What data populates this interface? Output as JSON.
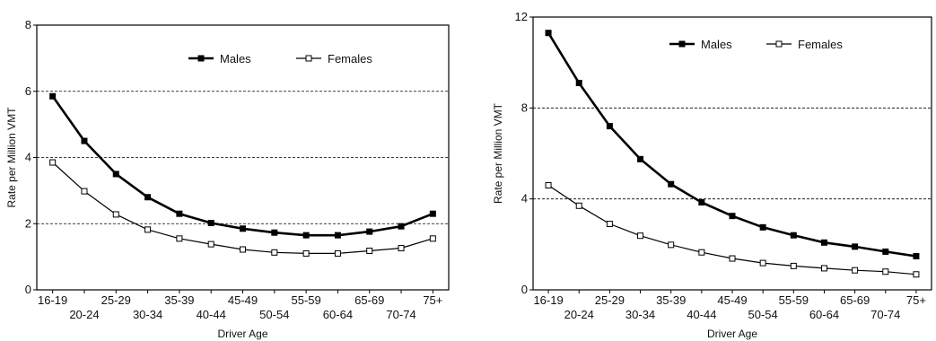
{
  "chart_data": [
    {
      "type": "line",
      "categories": [
        "16-19",
        "20-24",
        "25-29",
        "30-34",
        "35-39",
        "40-44",
        "45-49",
        "50-54",
        "55-59",
        "60-64",
        "65-69",
        "70-74",
        "75+"
      ],
      "series": [
        {
          "name": "Males",
          "marker": "filled-square",
          "values": [
            5.85,
            4.5,
            3.5,
            2.8,
            2.3,
            2.02,
            1.85,
            1.73,
            1.65,
            1.65,
            1.76,
            1.92,
            2.3
          ]
        },
        {
          "name": "Females",
          "marker": "open-square",
          "values": [
            3.85,
            2.98,
            2.28,
            1.82,
            1.55,
            1.38,
            1.22,
            1.13,
            1.1,
            1.1,
            1.18,
            1.26,
            1.55
          ]
        }
      ],
      "xlabel": "Driver Age",
      "ylabel": "Rate per Million VMT",
      "ylim": [
        0,
        8
      ],
      "yticks": [
        0,
        2,
        4,
        6,
        8
      ],
      "grid": "dashed horizontal at 2, 4, 6",
      "legend": "top-right",
      "colors": {
        "line": "#000000"
      }
    },
    {
      "type": "line",
      "categories": [
        "16-19",
        "20-24",
        "25-29",
        "30-34",
        "35-39",
        "40-44",
        "45-49",
        "50-54",
        "55-59",
        "60-64",
        "65-69",
        "70-74",
        "75+"
      ],
      "series": [
        {
          "name": "Males",
          "marker": "filled-square",
          "values": [
            11.3,
            9.1,
            7.2,
            5.75,
            4.65,
            3.85,
            3.25,
            2.75,
            2.4,
            2.08,
            1.9,
            1.68,
            1.48
          ]
        },
        {
          "name": "Females",
          "marker": "open-square",
          "values": [
            4.6,
            3.7,
            2.9,
            2.38,
            1.98,
            1.65,
            1.38,
            1.18,
            1.05,
            0.95,
            0.86,
            0.8,
            0.68
          ]
        }
      ],
      "xlabel": "Driver Age",
      "ylabel": "Rate per Million VMT",
      "ylim": [
        0,
        12
      ],
      "yticks": [
        0,
        4,
        8,
        12
      ],
      "grid": "dashed horizontal at 4, 8",
      "legend": "top-right",
      "colors": {
        "line": "#000000"
      }
    }
  ]
}
